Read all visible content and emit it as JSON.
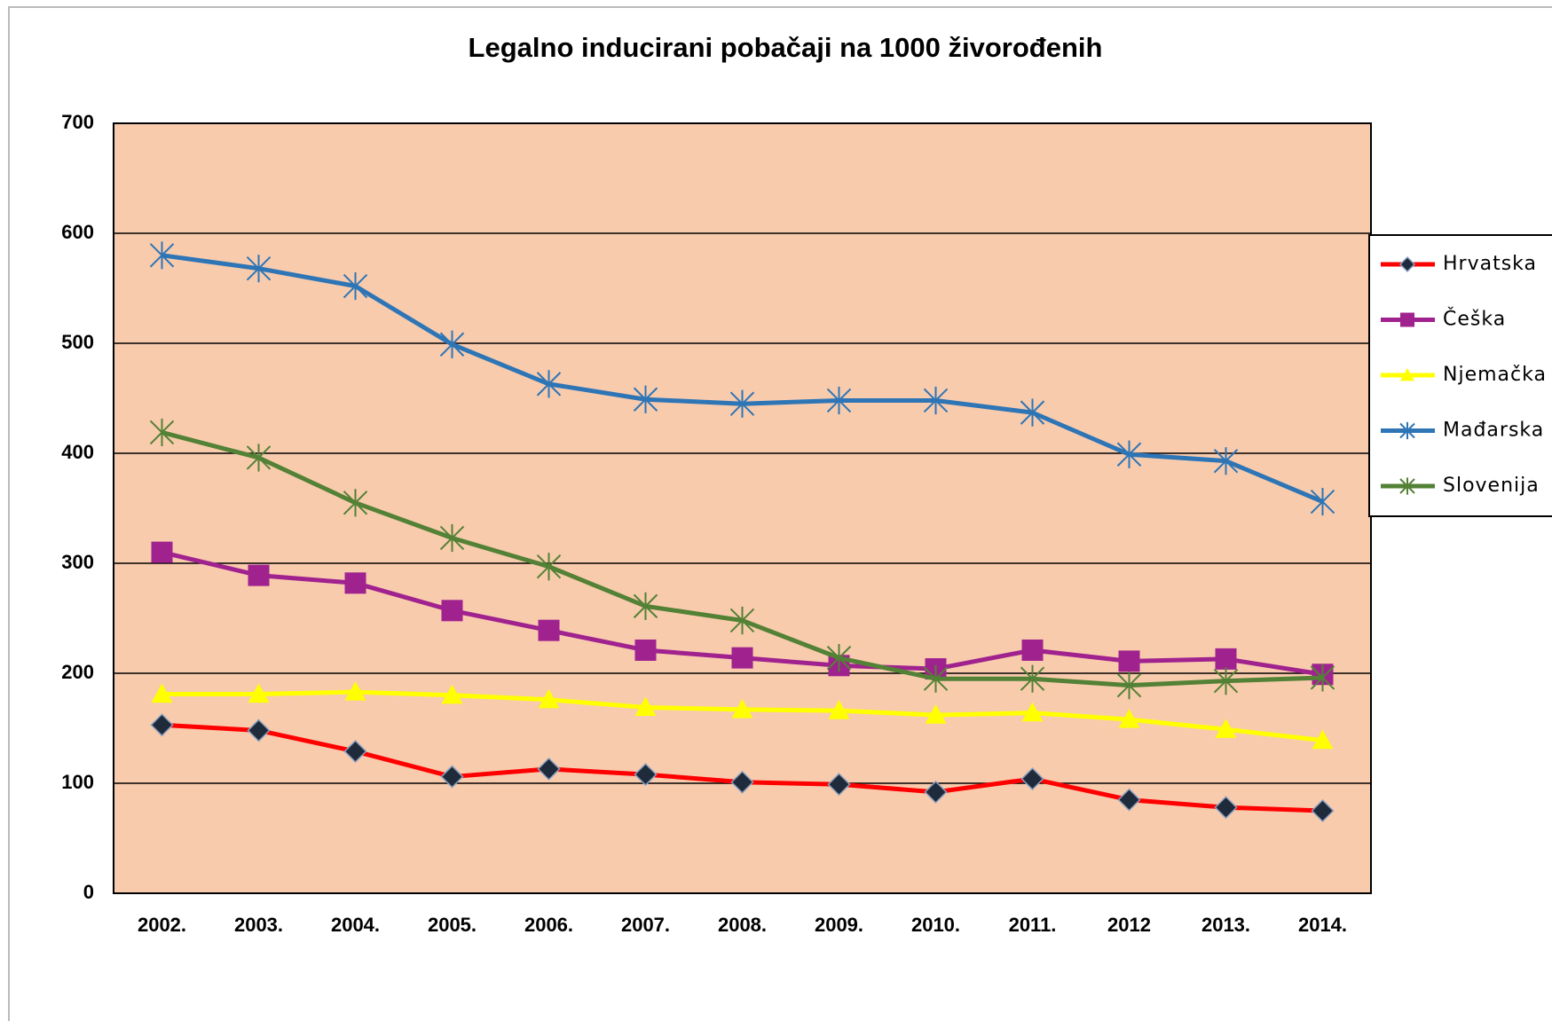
{
  "chart_data": {
    "type": "line",
    "title": "Legalno inducirani pobačaji na 1000 živorođenih",
    "categories": [
      "2002.",
      "2003.",
      "2004.",
      "2005.",
      "2006.",
      "2007.",
      "2008.",
      "2009.",
      "2010.",
      "2011.",
      "2012",
      "2013.",
      "2014."
    ],
    "series": [
      {
        "name": "Hrvatska",
        "color": "#ff0000",
        "marker": "diamond",
        "values": [
          153,
          148,
          129,
          106,
          113,
          108,
          101,
          99,
          92,
          104,
          85,
          78,
          75
        ]
      },
      {
        "name": "Češka",
        "color": "#a0228f",
        "marker": "square",
        "values": [
          310,
          289,
          282,
          257,
          239,
          221,
          214,
          207,
          204,
          221,
          211,
          213,
          199
        ]
      },
      {
        "name": "Njemačka",
        "color": "#ffff00",
        "marker": "triangle",
        "values": [
          181,
          181,
          183,
          180,
          176,
          169,
          167,
          166,
          162,
          164,
          158,
          149,
          139
        ]
      },
      {
        "name": "Mađarska",
        "color": "#2e75b6",
        "marker": "asterisk",
        "values": [
          580,
          568,
          552,
          499,
          463,
          449,
          445,
          448,
          448,
          437,
          399,
          393,
          356
        ]
      },
      {
        "name": "Slovenija",
        "color": "#538135",
        "marker": "asterisk",
        "values": [
          419,
          396,
          355,
          323,
          297,
          261,
          248,
          214,
          195,
          195,
          189,
          193,
          196
        ]
      }
    ],
    "ylim": [
      0,
      700
    ],
    "yticks": [
      0,
      100,
      200,
      300,
      400,
      500,
      600,
      700
    ],
    "grid": true,
    "legend": "right",
    "plot_background": "#f8cbad"
  }
}
